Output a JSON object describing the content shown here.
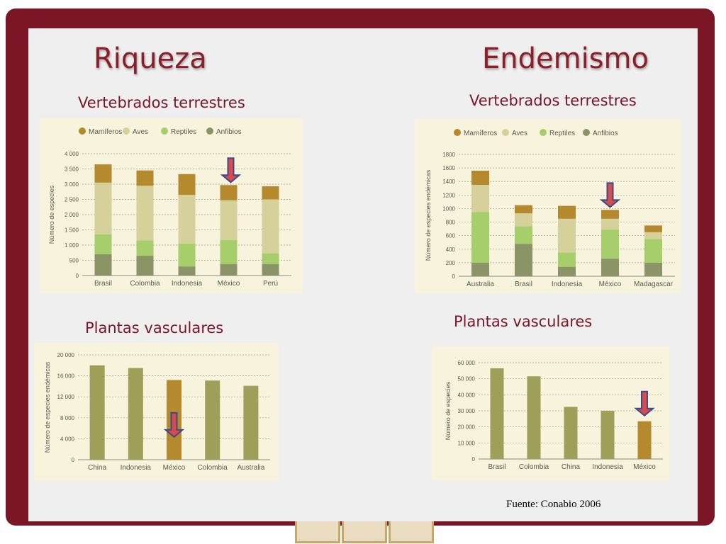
{
  "titles": {
    "left": "Riqueza",
    "right": "Endemismo"
  },
  "subtitles": {
    "left_top": "Vertebrados terrestres",
    "right_top": "Vertebrados terrestres",
    "left_bottom": "Plantas vasculares",
    "right_bottom": "Plantas vasculares"
  },
  "source": "Fuente: Conabio 2006",
  "colors": {
    "frame": "#7a1626",
    "title": "#8a1e2a",
    "chart_bg": "#f7f3dd",
    "arrow_fill": "#d94a4a",
    "arrow_stroke": "#3a4a8a",
    "highlight_bar": "#b5892d",
    "plain_bar": "#9ea05a"
  },
  "chart_data": [
    {
      "id": "riqueza-vertebrados",
      "type": "bar",
      "stacked": true,
      "categories": [
        "Brasil",
        "Colombia",
        "Indonesia",
        "México",
        "Perú"
      ],
      "ylabel": "Número de especies",
      "ylim": [
        0,
        4000
      ],
      "yticks": [
        0,
        500,
        1000,
        1500,
        2000,
        2500,
        3000,
        3500,
        4000
      ],
      "tick_labels": [
        "0",
        "500",
        "1 000",
        "1 500",
        "2 000",
        "2 500",
        "3 000",
        "3 500",
        "4 000"
      ],
      "legend_position": "top",
      "series": [
        {
          "name": "Anfibios",
          "color": "#8a9466",
          "values": [
            700,
            650,
            300,
            380,
            380
          ]
        },
        {
          "name": "Reptiles",
          "color": "#a6cf6c",
          "values": [
            650,
            500,
            750,
            790,
            350
          ]
        },
        {
          "name": "Aves",
          "color": "#d6d09a",
          "values": [
            1700,
            1800,
            1600,
            1300,
            1770
          ]
        },
        {
          "name": "Mamíferos",
          "color": "#b5892d",
          "values": [
            600,
            500,
            680,
            500,
            430
          ]
        }
      ],
      "legend_order": [
        "Mamíferos",
        "Aves",
        "Reptiles",
        "Anfibios"
      ],
      "highlight_index": 3
    },
    {
      "id": "endemismo-vertebrados",
      "type": "bar",
      "stacked": true,
      "categories": [
        "Australia",
        "Brasil",
        "Indonesia",
        "México",
        "Madagascar"
      ],
      "ylabel": "Número de especies endémicas",
      "ylim": [
        0,
        1800
      ],
      "yticks": [
        0,
        200,
        400,
        600,
        800,
        1000,
        1200,
        1400,
        1600,
        1800
      ],
      "tick_labels": [
        "0",
        "200",
        "400",
        "600",
        "800",
        "1000",
        "1200",
        "1400",
        "1600",
        "1800"
      ],
      "legend_position": "top",
      "series": [
        {
          "name": "Anfibios",
          "color": "#8a9466",
          "values": [
            200,
            480,
            140,
            260,
            200
          ]
        },
        {
          "name": "Reptiles",
          "color": "#a6cf6c",
          "values": [
            750,
            260,
            210,
            430,
            350
          ]
        },
        {
          "name": "Aves",
          "color": "#d6d09a",
          "values": [
            400,
            190,
            500,
            160,
            100
          ]
        },
        {
          "name": "Mamíferos",
          "color": "#b5892d",
          "values": [
            210,
            120,
            190,
            130,
            100
          ]
        }
      ],
      "legend_order": [
        "Mamíferos",
        "Aves",
        "Reptiles",
        "Anfibios"
      ],
      "highlight_index": 3
    },
    {
      "id": "riqueza-plantas",
      "type": "bar",
      "stacked": false,
      "categories": [
        "China",
        "Indonesia",
        "México",
        "Colombia",
        "Australia"
      ],
      "ylabel": "Número de especies endémicas",
      "ylim": [
        0,
        20000
      ],
      "yticks": [
        0,
        4000,
        8000,
        12000,
        16000,
        20000
      ],
      "tick_labels": [
        "0",
        "4 000",
        "8 000",
        "12 000",
        "16 000",
        "20 000"
      ],
      "values": [
        18000,
        17500,
        15200,
        15100,
        14100
      ],
      "highlight_index": 2
    },
    {
      "id": "endemismo-plantas",
      "type": "bar",
      "stacked": false,
      "categories": [
        "Brasil",
        "Colombia",
        "China",
        "Indonesia",
        "México"
      ],
      "ylabel": "Número de especies",
      "ylim": [
        0,
        60000
      ],
      "yticks": [
        0,
        10000,
        20000,
        30000,
        40000,
        50000,
        60000
      ],
      "tick_labels": [
        "0",
        "10 000",
        "20 000",
        "30 000",
        "40 000",
        "50 000",
        "60 000"
      ],
      "values": [
        56500,
        51500,
        32500,
        30000,
        23500
      ],
      "highlight_index": 4
    }
  ]
}
